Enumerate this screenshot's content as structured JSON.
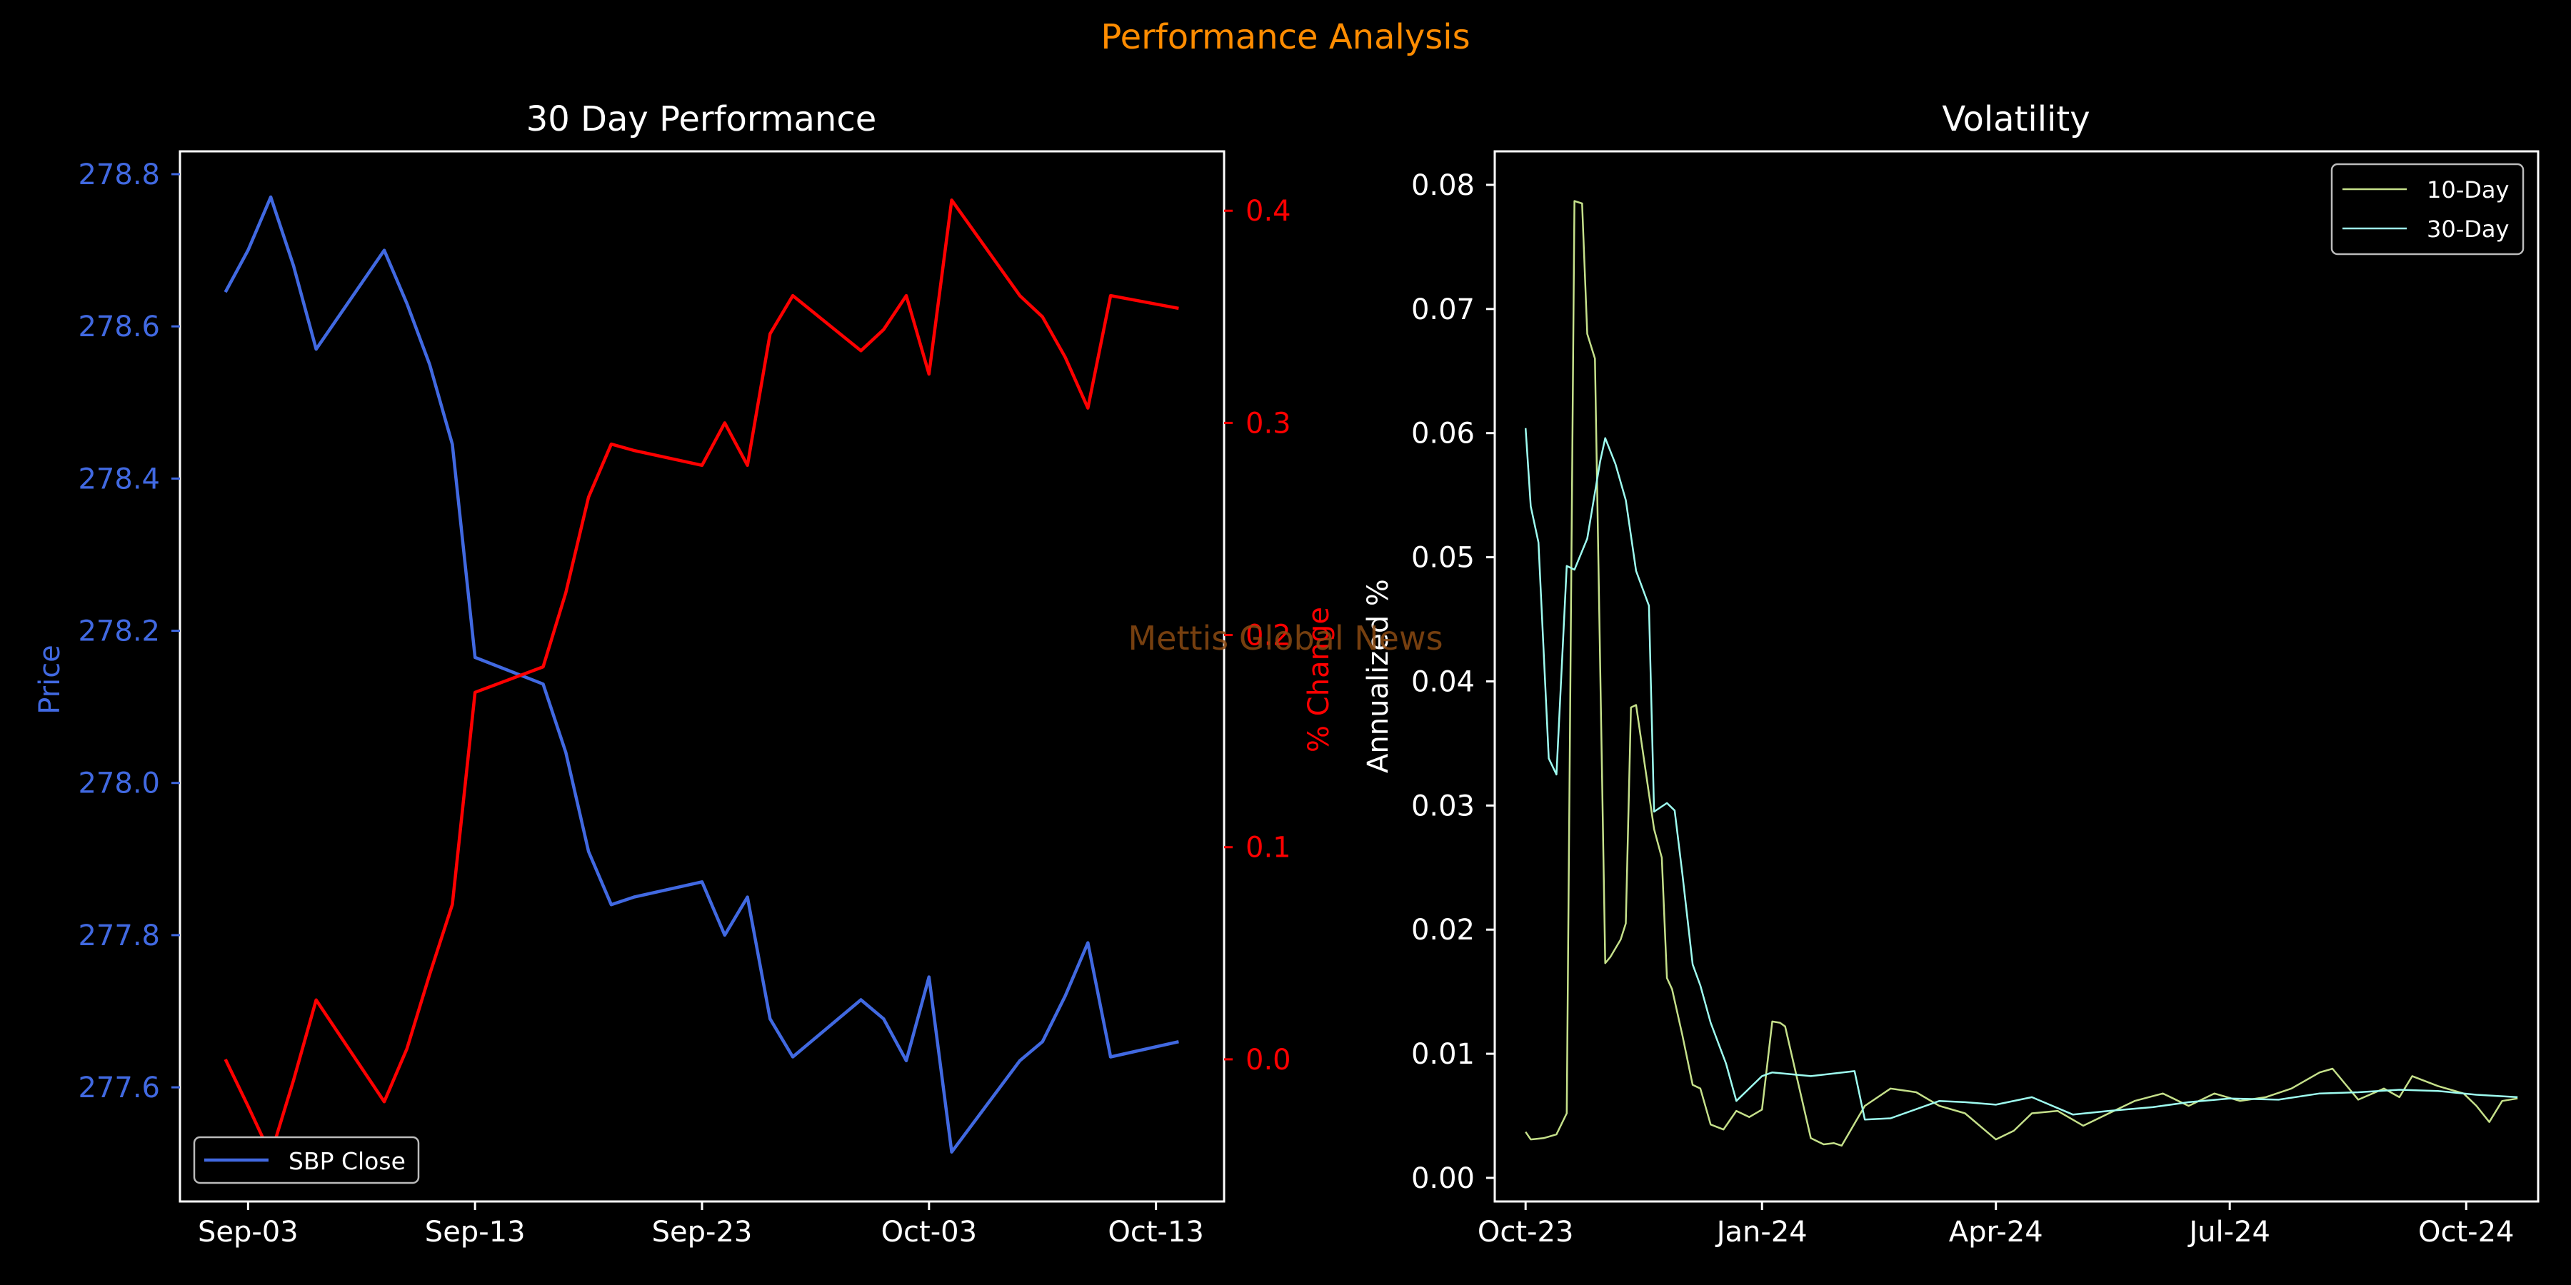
{
  "suptitle": "Performance Analysis",
  "watermark": "Mettis Global News",
  "colors": {
    "background": "#000000",
    "price": "#4169e1",
    "pct": "#ff0000",
    "suptitle": "#ff8c00",
    "vol10": "#c5e08a",
    "vol30": "#9efcf0",
    "axis": "#ffffff",
    "watermark": "#8b4a12"
  },
  "chart_data": [
    {
      "type": "line",
      "title": "30 Day Performance",
      "xlabel": "",
      "ylabel": "Price",
      "ylabel_right": "% Change",
      "x_tick_labels": [
        "Sep-03",
        "Sep-13",
        "Sep-23",
        "Oct-03",
        "Oct-13"
      ],
      "x_ticks": [
        "2024-09-03",
        "2024-09-13",
        "2024-09-23",
        "2024-10-03",
        "2024-10-13"
      ],
      "xlim": [
        "2024-08-31",
        "2024-10-16"
      ],
      "ylim": [
        277.45,
        278.83
      ],
      "y_ticks": [
        277.6,
        277.8,
        278.0,
        278.2,
        278.4,
        278.6,
        278.8
      ],
      "y_tick_labels": [
        "277.6",
        "277.8",
        "278.0",
        "278.2",
        "278.4",
        "278.6",
        "278.8"
      ],
      "ylim_right": [
        -0.067,
        0.428
      ],
      "y_ticks_right": [
        0.0,
        0.1,
        0.2,
        0.3,
        0.4
      ],
      "y_tick_labels_right": [
        "0.0",
        "0.1",
        "0.2",
        "0.3",
        "0.4"
      ],
      "legend_position": "lower-left",
      "series": [
        {
          "name": "SBP Close",
          "axis": "left",
          "x": [
            "2024-09-02",
            "2024-09-03",
            "2024-09-04",
            "2024-09-05",
            "2024-09-06",
            "2024-09-09",
            "2024-09-10",
            "2024-09-11",
            "2024-09-12",
            "2024-09-13",
            "2024-09-16",
            "2024-09-17",
            "2024-09-18",
            "2024-09-19",
            "2024-09-20",
            "2024-09-23",
            "2024-09-24",
            "2024-09-25",
            "2024-09-26",
            "2024-09-27",
            "2024-09-30",
            "2024-10-01",
            "2024-10-02",
            "2024-10-03",
            "2024-10-04",
            "2024-10-07",
            "2024-10-08",
            "2024-10-09",
            "2024-10-10",
            "2024-10-11",
            "2024-10-14"
          ],
          "values": [
            278.645,
            278.7,
            278.77,
            278.68,
            278.57,
            278.7,
            278.63,
            278.55,
            278.445,
            278.165,
            278.13,
            278.04,
            277.91,
            277.84,
            277.85,
            277.87,
            277.8,
            277.85,
            277.69,
            277.64,
            277.715,
            277.69,
            277.635,
            277.745,
            277.515,
            277.635,
            277.66,
            277.72,
            277.79,
            277.64,
            277.66
          ]
        },
        {
          "name": "% Change",
          "axis": "right",
          "x": [
            "2024-09-02",
            "2024-09-03",
            "2024-09-04",
            "2024-09-05",
            "2024-09-06",
            "2024-09-09",
            "2024-09-10",
            "2024-09-11",
            "2024-09-12",
            "2024-09-13",
            "2024-09-16",
            "2024-09-17",
            "2024-09-18",
            "2024-09-19",
            "2024-09-20",
            "2024-09-23",
            "2024-09-24",
            "2024-09-25",
            "2024-09-26",
            "2024-09-27",
            "2024-09-30",
            "2024-10-01",
            "2024-10-02",
            "2024-10-03",
            "2024-10-04",
            "2024-10-07",
            "2024-10-08",
            "2024-10-09",
            "2024-10-10",
            "2024-10-11",
            "2024-10-14"
          ],
          "values": [
            0.0,
            -0.022,
            -0.045,
            -0.01,
            0.028,
            -0.02,
            0.005,
            0.04,
            0.073,
            0.173,
            0.185,
            0.22,
            0.265,
            0.29,
            0.287,
            0.28,
            0.3,
            0.28,
            0.342,
            0.36,
            0.334,
            0.344,
            0.36,
            0.323,
            0.405,
            0.36,
            0.35,
            0.331,
            0.307,
            0.36,
            0.354
          ]
        }
      ]
    },
    {
      "type": "line",
      "title": "Volatility",
      "xlabel": "",
      "ylabel": "Annualized %",
      "x_tick_labels": [
        "Oct-23",
        "Jan-24",
        "Apr-24",
        "Jul-24",
        "Oct-24"
      ],
      "x_ticks": [
        "2023-10-01",
        "2024-01-01",
        "2024-04-01",
        "2024-07-01",
        "2024-10-01"
      ],
      "xlim": [
        "2023-09-19",
        "2024-10-29"
      ],
      "ylim": [
        -0.0019,
        0.0827
      ],
      "y_ticks": [
        0.0,
        0.01,
        0.02,
        0.03,
        0.04,
        0.05,
        0.06,
        0.07,
        0.08
      ],
      "y_tick_labels": [
        "0.00",
        "0.01",
        "0.02",
        "0.03",
        "0.04",
        "0.05",
        "0.06",
        "0.07",
        "0.08"
      ],
      "legend_position": "upper-right",
      "series": [
        {
          "name": "10-Day",
          "x": [
            "2023-10-01",
            "2023-10-03",
            "2023-10-08",
            "2023-10-13",
            "2023-10-17",
            "2023-10-20",
            "2023-10-23",
            "2023-10-25",
            "2023-10-28",
            "2023-11-01",
            "2023-11-03",
            "2023-11-07",
            "2023-11-09",
            "2023-11-11",
            "2023-11-13",
            "2023-11-20",
            "2023-11-23",
            "2023-11-25",
            "2023-11-27",
            "2023-12-01",
            "2023-12-05",
            "2023-12-08",
            "2023-12-12",
            "2023-12-17",
            "2023-12-22",
            "2023-12-27",
            "2024-01-01",
            "2024-01-05",
            "2024-01-08",
            "2024-01-10",
            "2024-01-20",
            "2024-01-25",
            "2024-01-29",
            "2024-02-01",
            "2024-02-10",
            "2024-02-20",
            "2024-03-01",
            "2024-03-10",
            "2024-03-20",
            "2024-04-01",
            "2024-04-08",
            "2024-04-15",
            "2024-04-25",
            "2024-05-05",
            "2024-05-15",
            "2024-05-25",
            "2024-06-05",
            "2024-06-15",
            "2024-06-25",
            "2024-07-05",
            "2024-07-15",
            "2024-07-25",
            "2024-08-05",
            "2024-08-10",
            "2024-08-20",
            "2024-08-30",
            "2024-09-05",
            "2024-09-10",
            "2024-09-20",
            "2024-09-30",
            "2024-10-05",
            "2024-10-10",
            "2024-10-15",
            "2024-10-21"
          ],
          "values": [
            0.0037,
            0.0031,
            0.0032,
            0.0035,
            0.0052,
            0.0787,
            0.0785,
            0.068,
            0.066,
            0.0173,
            0.0178,
            0.0192,
            0.0205,
            0.0379,
            0.0381,
            0.0281,
            0.0258,
            0.0161,
            0.0152,
            0.0115,
            0.0075,
            0.0072,
            0.0043,
            0.0039,
            0.0054,
            0.0049,
            0.0055,
            0.0126,
            0.0125,
            0.0122,
            0.0032,
            0.0027,
            0.0028,
            0.0026,
            0.0058,
            0.0072,
            0.0069,
            0.0058,
            0.0052,
            0.0031,
            0.0038,
            0.0052,
            0.0054,
            0.0042,
            0.0052,
            0.0062,
            0.0068,
            0.0058,
            0.0068,
            0.0062,
            0.0065,
            0.0072,
            0.0085,
            0.0088,
            0.0063,
            0.0072,
            0.0065,
            0.0082,
            0.0074,
            0.0068,
            0.0058,
            0.0045,
            0.0062,
            0.0064
          ]
        },
        {
          "name": "30-Day",
          "x": [
            "2023-10-01",
            "2023-10-03",
            "2023-10-06",
            "2023-10-10",
            "2023-10-13",
            "2023-10-17",
            "2023-10-20",
            "2023-10-25",
            "2023-10-30",
            "2023-11-01",
            "2023-11-05",
            "2023-11-09",
            "2023-11-13",
            "2023-11-18",
            "2023-11-20",
            "2023-11-25",
            "2023-11-28",
            "2023-12-01",
            "2023-12-05",
            "2023-12-08",
            "2023-12-12",
            "2023-12-18",
            "2023-12-22",
            "2024-01-01",
            "2024-01-05",
            "2024-01-20",
            "2024-02-06",
            "2024-02-10",
            "2024-02-20",
            "2024-03-10",
            "2024-03-20",
            "2024-04-01",
            "2024-04-15",
            "2024-05-01",
            "2024-05-15",
            "2024-06-01",
            "2024-06-15",
            "2024-07-01",
            "2024-07-20",
            "2024-08-05",
            "2024-08-20",
            "2024-09-05",
            "2024-09-20",
            "2024-10-05",
            "2024-10-21"
          ],
          "values": [
            0.0604,
            0.0541,
            0.0512,
            0.0338,
            0.0325,
            0.0493,
            0.049,
            0.0515,
            0.0577,
            0.0596,
            0.0575,
            0.0546,
            0.0489,
            0.0461,
            0.0295,
            0.0302,
            0.0296,
            0.0245,
            0.0172,
            0.0155,
            0.0125,
            0.0092,
            0.0062,
            0.0082,
            0.0085,
            0.0082,
            0.0086,
            0.0047,
            0.0048,
            0.0062,
            0.0061,
            0.0059,
            0.0065,
            0.0051,
            0.0054,
            0.0057,
            0.0061,
            0.0064,
            0.0063,
            0.0068,
            0.0069,
            0.0071,
            0.007,
            0.0067,
            0.0065
          ]
        }
      ]
    }
  ]
}
